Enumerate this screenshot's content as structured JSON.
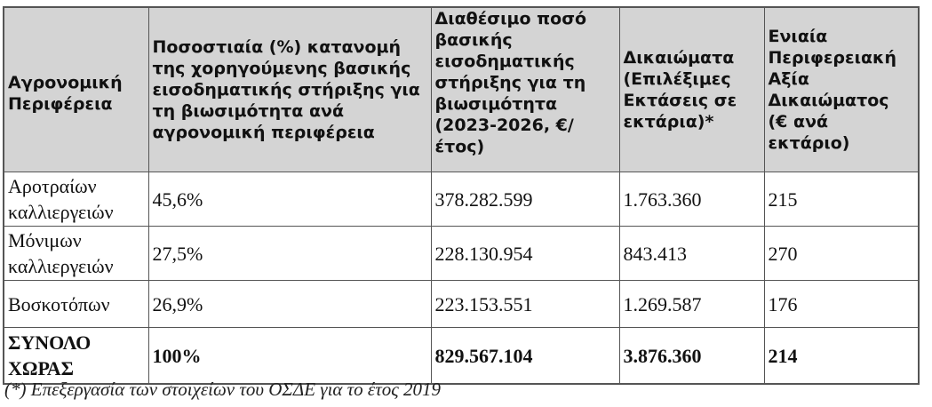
{
  "table": {
    "headers": [
      "Αγρονομική Περιφέρεια",
      "Ποσοστιαία (%) κατανομή της χορηγούμενης βασικής εισοδηματικής στήριξης για τη βιωσιμότητα ανά αγρονομική περιφέρεια",
      "Διαθέσιμο ποσό βασικής εισοδηματικής στήριξης για τη βιωσιμότητα (2023-2026, €/έτος)",
      "Δικαιώματα (Επιλέξιμες Εκτάσεις σε εκτάρια)*",
      "Ενιαία Περιφερειακή Αξία Δικαιώματος (€ ανά εκτάριο)"
    ],
    "rows": [
      [
        "Αροτραίων καλλιεργειών",
        "45,6%",
        "378.282.599",
        "1.763.360",
        "215"
      ],
      [
        "Μόνιμων καλλιεργειών",
        "27,5%",
        "228.130.954",
        "843.413",
        "270"
      ],
      [
        "Βοσκοτόπων",
        "26,9%",
        "223.153.551",
        "1.269.587",
        "176"
      ]
    ],
    "total": [
      "ΣΥΝΟΛΟ ΧΩΡΑΣ",
      "100%",
      "829.567.104",
      "3.876.360",
      "214"
    ]
  },
  "footnote": "(*) Επεξεργασία των στοιχείων του ΟΣΔΕ για το έτος 2019"
}
